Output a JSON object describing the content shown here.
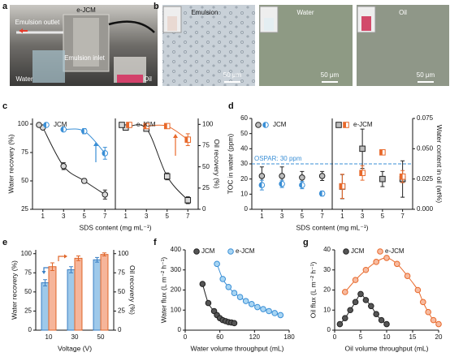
{
  "panel_labels": [
    "a",
    "b",
    "c",
    "d",
    "e",
    "f",
    "g"
  ],
  "photo_a": {
    "labels": [
      "e-JCM",
      "Emulsion outlet",
      "Emulsion inlet",
      "Water",
      "Oil"
    ]
  },
  "photo_b": {
    "titles": [
      "Emulsion",
      "Water",
      "Oil"
    ],
    "scale_bars": [
      "50 μm",
      "50 μm",
      "50 μm"
    ]
  },
  "chart_data": [
    {
      "type": "scatter",
      "fit": true,
      "x_label": "SDS content (mg mL⁻¹)",
      "y_label": "Water recovery (%)",
      "y2_label": "Oil recovery (%)",
      "xlim": [
        0,
        8
      ],
      "xticks": [
        1,
        3,
        5,
        7
      ],
      "ylim": [
        25,
        105
      ],
      "yticks": [
        25,
        50,
        75,
        100
      ],
      "y2lim": [
        0,
        107
      ],
      "y2ticks": [
        0,
        25,
        50,
        75,
        100
      ],
      "subplots": [
        {
          "legend": "JCM",
          "series": [
            {
              "marker": "circle",
              "color": "#222222",
              "fill": "#d9d9d9",
              "x": [
                1,
                3,
                5,
                7
              ],
              "values": [
                97,
                63,
                50,
                38
              ],
              "errors": [
                1,
                3,
                2,
                4
              ]
            },
            {
              "marker": "half-circle",
              "axis": "y2",
              "color": "#3a8fd6",
              "fill": "#ffffff",
              "x": [
                3,
                5,
                7
              ],
              "values": [
                94,
                92,
                66
              ],
              "errors": [
                2,
                3,
                7
              ]
            }
          ]
        },
        {
          "legend": "e-JCM",
          "series": [
            {
              "marker": "square",
              "color": "#222222",
              "fill": "#d9d9d9",
              "x": [
                1,
                3,
                5,
                7
              ],
              "values": [
                97,
                96,
                54,
                33
              ],
              "errors": [
                2,
                2,
                3,
                3
              ]
            },
            {
              "marker": "half-square",
              "axis": "y2",
              "color": "#e8692b",
              "fill": "#ffffff",
              "x": [
                3,
                5,
                7
              ],
              "values": [
                98,
                98,
                82
              ],
              "errors": [
                2,
                2,
                7
              ]
            }
          ]
        }
      ]
    },
    {
      "type": "scatter",
      "x_label": "SDS content (mg mL⁻¹)",
      "y_label": "TOC in water (ppm)",
      "y2_label": "Water content in oil (wt%)",
      "xlim": [
        0,
        8
      ],
      "xticks": [
        1,
        3,
        5,
        7
      ],
      "ylim": [
        0,
        60
      ],
      "yticks": [
        0,
        10,
        20,
        30,
        40,
        50,
        60
      ],
      "y2lim": [
        0,
        0.075
      ],
      "y2ticks": [
        {
          "value": 0,
          "label": "0.000"
        },
        {
          "value": 0.025,
          "label": "0.025"
        },
        {
          "value": 0.05,
          "label": "0.050"
        },
        {
          "value": 0.075,
          "label": "0.075"
        }
      ],
      "reference_line": 30,
      "annotation": "OSPAR: 30 ppm",
      "subplots": [
        {
          "legend": "JCM",
          "series": [
            {
              "marker": "circle",
              "color": "#222222",
              "fill": "#bdbdbd",
              "x": [
                1,
                3,
                5,
                7
              ],
              "values": [
                22,
                22,
                21,
                22
              ],
              "errors": [
                6,
                6,
                4,
                3
              ]
            },
            {
              "marker": "half-circle",
              "axis": "y2",
              "color": "#3a8fd6",
              "fill": "#ffffff",
              "x": [
                1,
                3,
                5,
                7
              ],
              "values": [
                0.02,
                0.021,
                0.02,
                0.013
              ],
              "errors": [
                0.004,
                0.003,
                0.003,
                0.002
              ]
            }
          ]
        },
        {
          "legend": "e-JCM",
          "series": [
            {
              "marker": "square",
              "color": "#222222",
              "fill": "#bdbdbd",
              "x": [
                1,
                3,
                5,
                7
              ],
              "values": [
                15,
                40,
                20,
                20
              ],
              "errors": [
                8,
                13,
                5,
                12
              ]
            },
            {
              "marker": "half-square",
              "axis": "y2",
              "color": "#e8692b",
              "fill": "#ffffff",
              "x": [
                1,
                3,
                5,
                7
              ],
              "values": [
                0.019,
                0.03,
                0.047,
                0.027
              ],
              "errors": [
                0.01,
                0.006,
                0.002,
                0.005
              ]
            }
          ]
        }
      ]
    },
    {
      "type": "bar",
      "x_label": "Voltage (V)",
      "y_label": "Water recovery (%)",
      "y2_label": "Oil recovery (%)",
      "categories": [
        "10",
        "30",
        "50"
      ],
      "ylim": [
        0,
        105
      ],
      "yticks": [
        0,
        25,
        50,
        75,
        100
      ],
      "y2lim": [
        0,
        105
      ],
      "y2ticks": [
        0,
        25,
        50,
        75,
        100
      ],
      "series": [
        {
          "color": "#3a7fc4",
          "fill": "#9ec9ea",
          "values": [
            62,
            79,
            92
          ],
          "errors": [
            4,
            4,
            3
          ]
        },
        {
          "axis": "y2",
          "color": "#e0662a",
          "fill": "#f6b59a",
          "values": [
            83,
            94,
            99
          ],
          "errors": [
            5,
            3,
            2
          ]
        }
      ]
    },
    {
      "type": "scatter",
      "fit": true,
      "x_label": "Water volume throughput (mL)",
      "y_label": "Water flux (L m⁻² h⁻¹)",
      "xlim": [
        0,
        180
      ],
      "xticks": [
        0,
        60,
        120,
        180
      ],
      "ylim": [
        0,
        400
      ],
      "yticks": [
        0,
        100,
        200,
        300,
        400
      ],
      "series": [
        {
          "name": "JCM",
          "marker": "circle",
          "color": "#222222",
          "fill": "#555555",
          "x": [
            30,
            40,
            50,
            55,
            60,
            65,
            70,
            75,
            80,
            85
          ],
          "values": [
            230,
            135,
            95,
            75,
            60,
            50,
            45,
            40,
            38,
            35
          ]
        },
        {
          "name": "e-JCM",
          "marker": "circle",
          "color": "#3a8fd6",
          "fill": "#a8d5f3",
          "x": [
            55,
            65,
            75,
            85,
            95,
            105,
            115,
            125,
            135,
            145,
            155,
            165
          ],
          "values": [
            330,
            255,
            215,
            185,
            165,
            145,
            130,
            115,
            105,
            95,
            85,
            75
          ]
        }
      ]
    },
    {
      "type": "scatter",
      "fit": true,
      "x_label": "Oil volume throughput (mL)",
      "y_label": "Oil flux (L m⁻² h⁻¹)",
      "xlim": [
        0,
        20
      ],
      "xticks": [
        0,
        5,
        10,
        15,
        20
      ],
      "ylim": [
        0,
        40
      ],
      "yticks": [
        0,
        10,
        20,
        30,
        40
      ],
      "series": [
        {
          "name": "JCM",
          "marker": "circle",
          "color": "#222222",
          "fill": "#555555",
          "x": [
            1,
            2,
            3,
            4,
            5,
            6,
            7,
            8,
            9,
            10
          ],
          "values": [
            3,
            6,
            10,
            14,
            18,
            15,
            12,
            8,
            5,
            3
          ]
        },
        {
          "name": "e-JCM",
          "marker": "circle",
          "color": "#e8692b",
          "fill": "#f7bba0",
          "x": [
            2,
            4,
            6,
            8,
            10,
            12,
            14,
            16,
            17,
            18,
            19,
            20
          ],
          "values": [
            19,
            25,
            30,
            34,
            36,
            33,
            27,
            20,
            14,
            9,
            5,
            3
          ]
        }
      ]
    }
  ]
}
